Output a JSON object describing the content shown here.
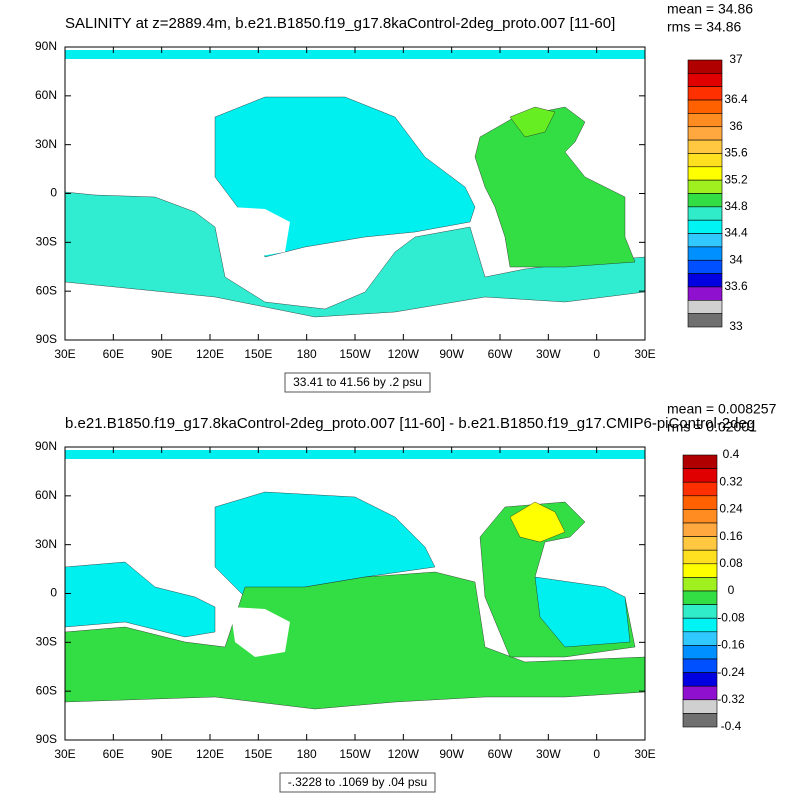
{
  "axes": {
    "x_labels": [
      "30E",
      "60E",
      "90E",
      "120E",
      "150E",
      "180",
      "150W",
      "120W",
      "90W",
      "60W",
      "30W",
      "0",
      "30E"
    ],
    "y_labels": [
      "90N",
      "60N",
      "30N",
      "0",
      "30S",
      "60S",
      "90S"
    ]
  },
  "panels": [
    {
      "title": "SALINITY at z=2889.4m, b.e21.B1850.f19_g17.8kaControl-2deg_proto.007 [11-60]",
      "stats": [
        "mean = 34.86",
        "rms = 34.86"
      ],
      "colorbar_labels": [
        "37",
        "36.4",
        "36",
        "35.6",
        "35.2",
        "34.8",
        "34.4",
        "34",
        "33.6",
        "33"
      ],
      "contour_info": "33.41 to 41.56 by .2 psu"
    },
    {
      "title": "b.e21.B1850.f19_g17.8kaControl-2deg_proto.007 [11-60] - b.e21.B1850.f19_g17.CMIP6-piControl-2deg",
      "stats": [
        "mean = 0.008257",
        "rms = 0.02001"
      ],
      "colorbar_labels": [
        "0.4",
        "0.32",
        "0.24",
        "0.16",
        "0.08",
        "0",
        "-0.08",
        "-0.16",
        "-0.24",
        "-0.32",
        "-0.4"
      ],
      "contour_info": "-.3228 to .1069 by .04 psu"
    }
  ]
}
